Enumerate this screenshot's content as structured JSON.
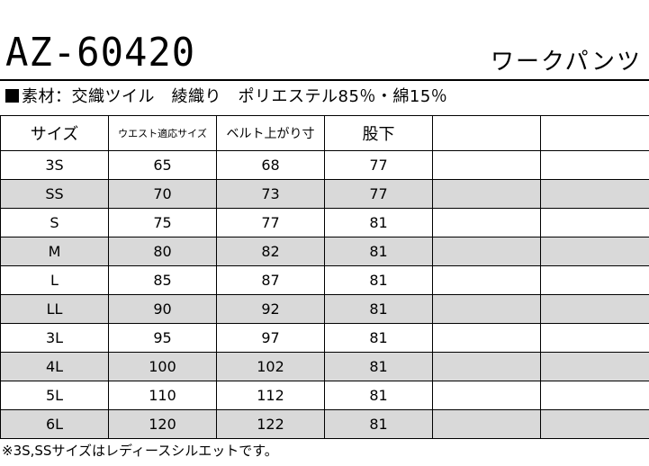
{
  "header": {
    "model": "AZ-60420",
    "category": "ワークパンツ"
  },
  "material": {
    "text": "素材：交織ツイル　綾織り　ポリエステル85％・綿15％"
  },
  "table": {
    "headers": [
      "サイズ",
      "ウエスト適応サイズ",
      "ベルト上がり寸",
      "股下",
      "",
      ""
    ],
    "rows": [
      [
        "3S",
        "65",
        "68",
        "77",
        "",
        ""
      ],
      [
        "SS",
        "70",
        "73",
        "77",
        "",
        ""
      ],
      [
        "S",
        "75",
        "77",
        "81",
        "",
        ""
      ],
      [
        "M",
        "80",
        "82",
        "81",
        "",
        ""
      ],
      [
        "L",
        "85",
        "87",
        "81",
        "",
        ""
      ],
      [
        "LL",
        "90",
        "92",
        "81",
        "",
        ""
      ],
      [
        "3L",
        "95",
        "97",
        "81",
        "",
        ""
      ],
      [
        "4L",
        "100",
        "102",
        "81",
        "",
        ""
      ],
      [
        "5L",
        "110",
        "112",
        "81",
        "",
        ""
      ],
      [
        "6L",
        "120",
        "122",
        "81",
        "",
        ""
      ]
    ],
    "shade_color": "#d9d9d9"
  },
  "footer": {
    "note": "※3S,SSサイズはレディースシルエットです。"
  }
}
